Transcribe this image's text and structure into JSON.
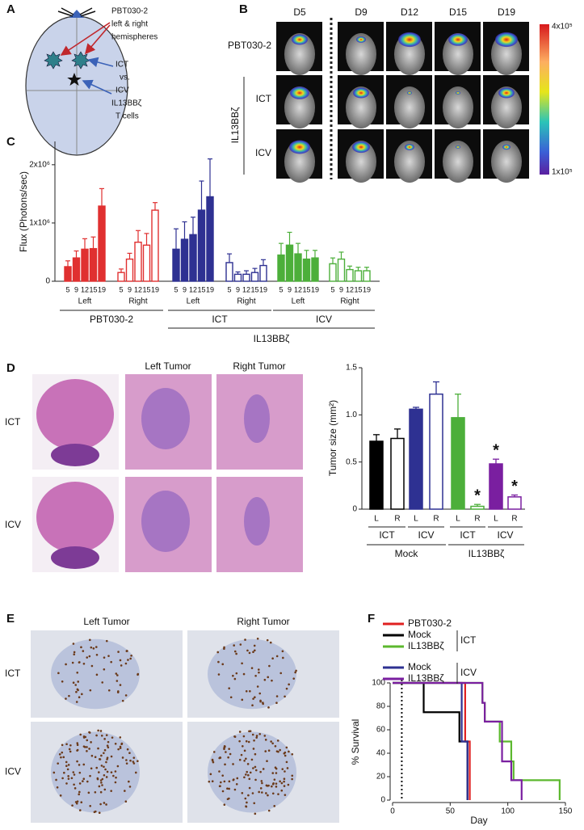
{
  "panels": {
    "a": {
      "label": "A",
      "lines": [
        "PBT030-2",
        "left & right",
        "hemispheres",
        "ICT",
        "vs.",
        "ICV",
        "IL13BBζ",
        "T cells"
      ]
    },
    "b": {
      "label": "B",
      "days": [
        "D5",
        "D9",
        "D12",
        "D15",
        "D19"
      ],
      "rows": [
        "PBT030-2",
        "ICT",
        "ICV"
      ],
      "group": "IL13BBζ",
      "scale_max": "4x10⁵",
      "scale_min": "1x10⁵"
    },
    "c": {
      "label": "C"
    },
    "d": {
      "label": "D",
      "columns": [
        "Left Tumor",
        "Right Tumor"
      ],
      "rows": [
        "ICT",
        "ICV"
      ]
    },
    "e": {
      "label": "E",
      "columns": [
        "Left Tumor",
        "Right Tumor"
      ],
      "rows": [
        "ICT",
        "ICV"
      ]
    },
    "f": {
      "label": "F"
    }
  },
  "chart_data": [
    {
      "type": "grouped-bar",
      "y_label": "Flux (Photons/sec)",
      "categories": [
        "5",
        "9",
        "12",
        "15",
        "19"
      ],
      "ylim": [
        0,
        2400000
      ],
      "yticks": [
        0,
        {
          "value": 1000000,
          "label": "1x10⁶"
        },
        {
          "value": 2000000,
          "label": "2x10⁶"
        }
      ],
      "series": [
        {
          "name": "Left",
          "color": "#e03030",
          "filled": true,
          "values": [
            250000,
            400000,
            550000,
            560000,
            1290000
          ],
          "errors": [
            100000,
            120000,
            180000,
            200000,
            300000
          ]
        },
        {
          "name": "Right",
          "color": "#e03030",
          "filled": false,
          "values": [
            150000,
            380000,
            670000,
            620000,
            1220000
          ],
          "errors": [
            60000,
            100000,
            200000,
            200000,
            130000
          ]
        },
        {
          "name": "Left",
          "color": "#2e3192",
          "filled": true,
          "values": [
            550000,
            720000,
            800000,
            1220000,
            1450000
          ],
          "errors": [
            350000,
            300000,
            300000,
            500000,
            650000
          ]
        },
        {
          "name": "Right",
          "color": "#2e3192",
          "filled": false,
          "values": [
            320000,
            120000,
            120000,
            150000,
            270000
          ],
          "errors": [
            150000,
            40000,
            60000,
            70000,
            100000
          ]
        },
        {
          "name": "Left",
          "color": "#4caf3a",
          "filled": true,
          "values": [
            450000,
            620000,
            470000,
            380000,
            400000
          ],
          "errors": [
            200000,
            220000,
            180000,
            150000,
            130000
          ]
        },
        {
          "name": "Right",
          "color": "#4caf3a",
          "filled": false,
          "values": [
            300000,
            380000,
            200000,
            180000,
            180000
          ],
          "errors": [
            100000,
            120000,
            60000,
            60000,
            60000
          ]
        }
      ],
      "groups": [
        "PBT030-2",
        "ICT",
        "ICV"
      ],
      "supergroup": "IL13BBζ"
    },
    {
      "type": "bar",
      "y_label": "Tumor size (mm²)",
      "categories": [
        "L",
        "R",
        "L",
        "R",
        "L",
        "R",
        "L",
        "R"
      ],
      "values": [
        0.72,
        0.75,
        1.06,
        1.22,
        0.97,
        0.03,
        0.48,
        0.13
      ],
      "errors": [
        0.07,
        0.1,
        0.02,
        0.13,
        0.25,
        0.02,
        0.05,
        0.02
      ],
      "colors": [
        "#000000",
        "#000000",
        "#2e3192",
        "#2e3192",
        "#4caf3a",
        "#4caf3a",
        "#7a1fa0",
        "#7a1fa0"
      ],
      "filled": [
        true,
        false,
        true,
        false,
        true,
        false,
        true,
        false
      ],
      "significance": [
        null,
        null,
        null,
        null,
        null,
        "*",
        "*",
        "*"
      ],
      "ylim": [
        0,
        1.5
      ],
      "yticks": [
        0,
        0.5,
        {
          "value": 1,
          "label": "1.0"
        },
        1.5
      ],
      "routes": [
        "ICT",
        "ICV",
        "ICT",
        "ICV"
      ],
      "groups": [
        "Mock",
        "IL13BBζ"
      ]
    },
    {
      "type": "step",
      "x_label": "Day",
      "y_label": "% Survival",
      "xlim": [
        0,
        150
      ],
      "ylim": [
        0,
        100
      ],
      "xticks": [
        0,
        50,
        100,
        150
      ],
      "yticks": [
        0,
        20,
        40,
        60,
        80,
        100
      ],
      "vline": 8,
      "series": [
        {
          "name": "PBT030-2",
          "color": "#e02020",
          "x": [
            0,
            63,
            67
          ],
          "values": [
            100,
            50,
            0
          ]
        },
        {
          "name": "Mock",
          "color": "#000000",
          "x": [
            0,
            27,
            58,
            65
          ],
          "values": [
            100,
            75,
            50,
            0
          ]
        },
        {
          "name": "IL13BBζ",
          "color": "#5cb82e",
          "x": [
            0,
            78,
            80,
            93,
            103,
            105,
            145
          ],
          "values": [
            100,
            83,
            67,
            50,
            33,
            17,
            0
          ]
        },
        {
          "name": "Mock",
          "color": "#2e3192",
          "x": [
            0,
            60,
            65
          ],
          "values": [
            100,
            50,
            0
          ]
        },
        {
          "name": "IL13BBζ",
          "color": "#7a1fa0",
          "x": [
            0,
            78,
            80,
            95,
            103,
            112
          ],
          "values": [
            100,
            83,
            67,
            33,
            17,
            0
          ]
        }
      ],
      "legend_groups": [
        "ICT",
        "ICV"
      ]
    }
  ]
}
